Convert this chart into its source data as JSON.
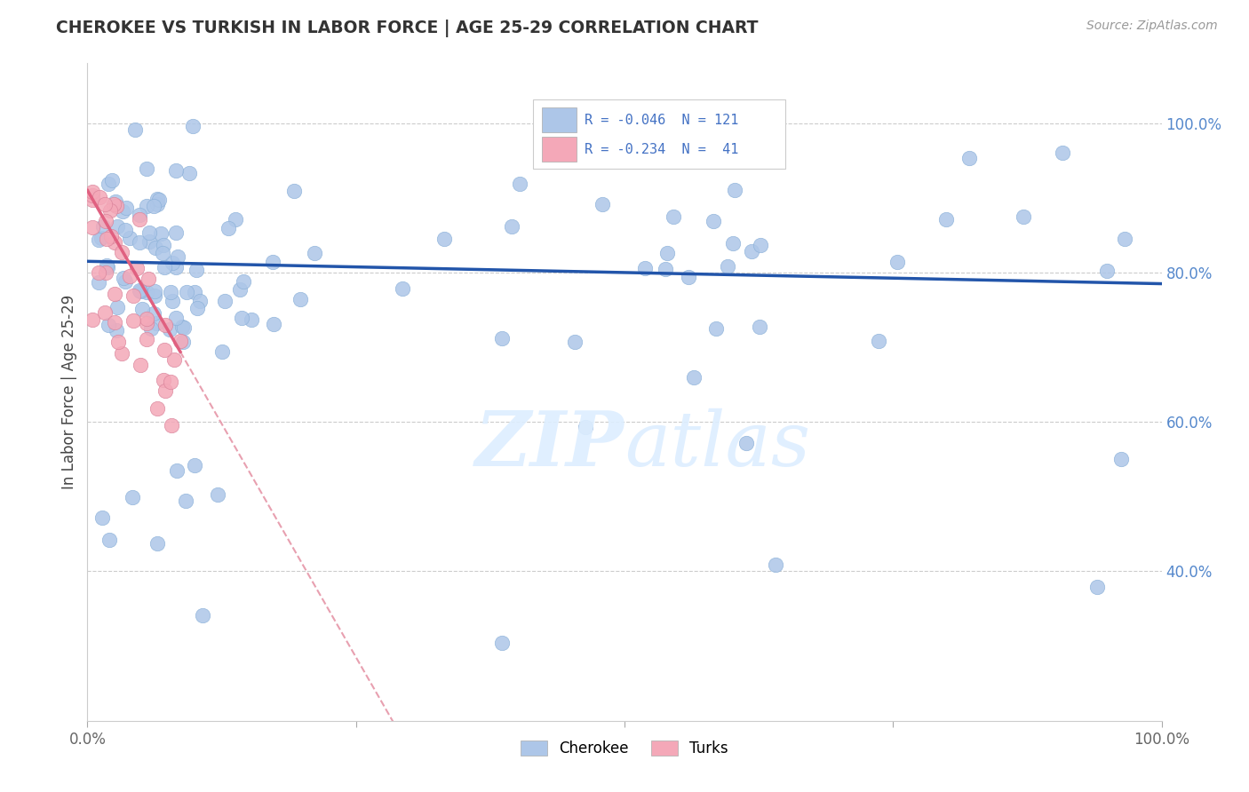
{
  "title": "CHEROKEE VS TURKISH IN LABOR FORCE | AGE 25-29 CORRELATION CHART",
  "source": "Source: ZipAtlas.com",
  "ylabel": "In Labor Force | Age 25-29",
  "cherokee_color": "#adc6e8",
  "turks_color": "#f4a8b8",
  "cherokee_line_color": "#2255aa",
  "turks_line_color": "#e06080",
  "dashed_line_color": "#e8a0b0",
  "background_color": "#ffffff",
  "grid_color": "#cccccc",
  "right_tick_color": "#5588cc",
  "xlim": [
    0.0,
    1.0
  ],
  "ylim": [
    0.2,
    1.08
  ],
  "yticks": [
    0.4,
    0.6,
    0.8,
    1.0
  ],
  "ytick_labels": [
    "40.0%",
    "60.0%",
    "80.0%",
    "100.0%"
  ],
  "cherokee_seed": 12,
  "turks_seed": 7
}
